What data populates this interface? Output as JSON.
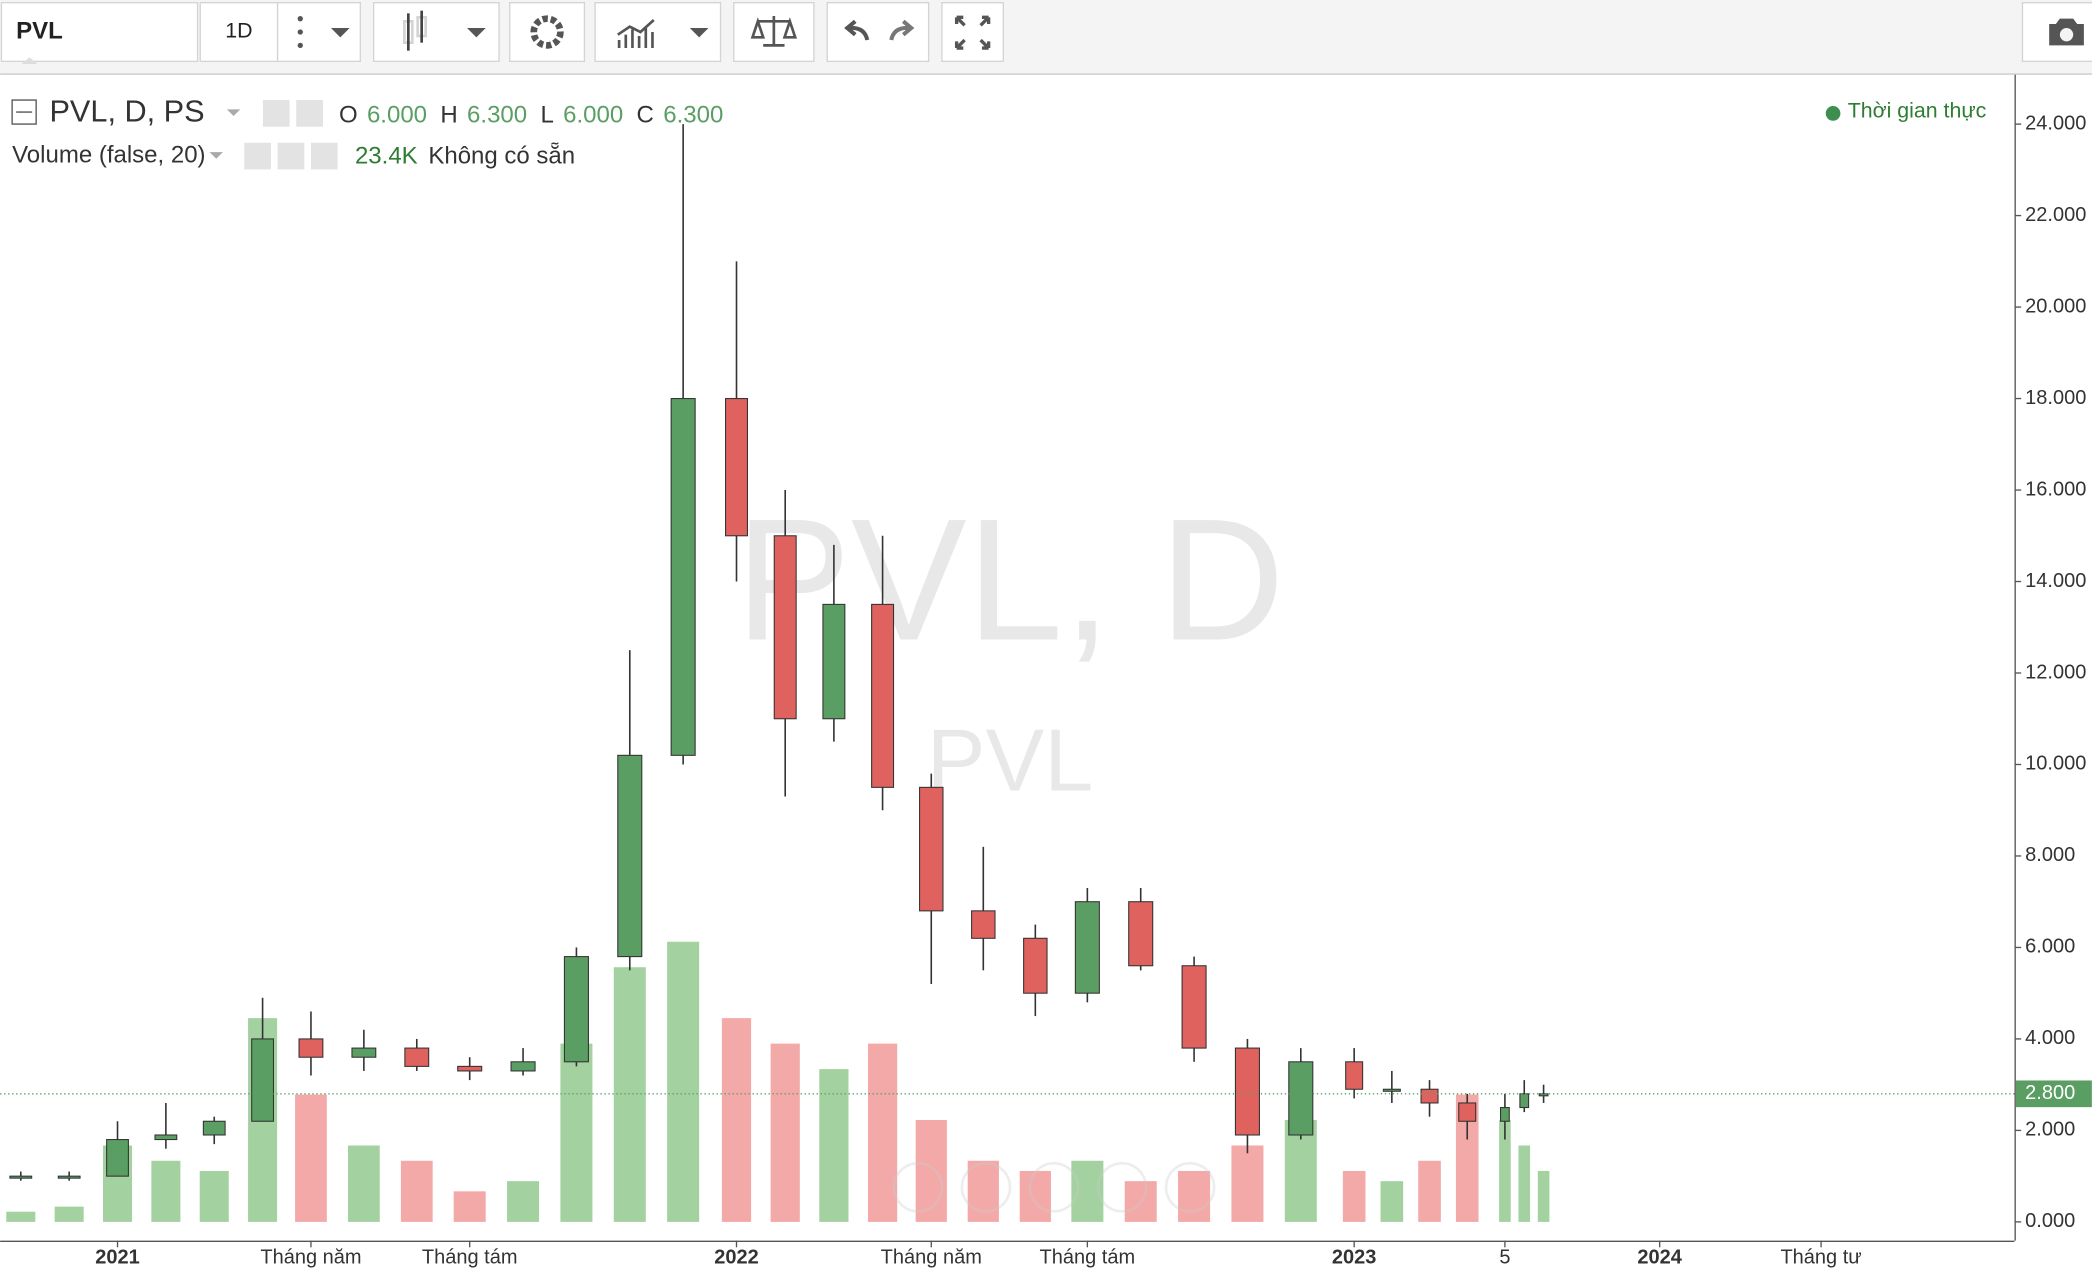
{
  "toolbar": {
    "symbol": "PVL",
    "interval": "1D"
  },
  "legend": {
    "title": "PVL, D, PS",
    "ohlc": [
      {
        "key": "O",
        "value": "6.000"
      },
      {
        "key": "H",
        "value": "6.300"
      },
      {
        "key": "L",
        "value": "6.000"
      },
      {
        "key": "C",
        "value": "6.300"
      }
    ],
    "volume_title": "Volume (false, 20)",
    "volume_value": "23.4K",
    "volume_status": "Không có sẵn"
  },
  "status": "Thời gian thực",
  "watermark": {
    "title": "PVL, D",
    "subtitle": "PVL"
  },
  "chart_data": {
    "type": "candlestick",
    "x": [
      "2020-11",
      "2020-12",
      "2021-01",
      "2021-02",
      "2021-03",
      "2021-04",
      "2021-05",
      "2021-06",
      "2021-07",
      "2021-08",
      "2021-09",
      "2021-10",
      "2021-11",
      "2021-12",
      "2022-01",
      "2022-02",
      "2022-03",
      "2022-04",
      "2022-05",
      "2022-06",
      "2022-07",
      "2022-08",
      "2022-09",
      "2022-10",
      "2022-11",
      "2022-12",
      "2023-01",
      "2023-02",
      "2023-03",
      "2023-04",
      "2023-05",
      "2023-06",
      "2023-07"
    ],
    "open": [
      1.0,
      1.0,
      1.0,
      1.8,
      1.9,
      2.2,
      4.0,
      3.6,
      3.8,
      3.4,
      3.3,
      3.5,
      5.8,
      10.2,
      18.0,
      15.0,
      11.0,
      13.5,
      9.5,
      6.8,
      6.2,
      5.0,
      7.0,
      5.6,
      3.8,
      1.9,
      3.5,
      2.9,
      2.9,
      2.6,
      2.2,
      2.5,
      2.8
    ],
    "high": [
      1.1,
      1.1,
      2.2,
      2.6,
      2.3,
      4.9,
      4.6,
      4.2,
      4.0,
      3.6,
      3.8,
      6.0,
      12.5,
      24.0,
      21.0,
      16.0,
      14.8,
      15.0,
      9.8,
      8.2,
      6.5,
      7.3,
      7.3,
      5.8,
      4.0,
      3.8,
      3.8,
      3.3,
      3.1,
      2.8,
      2.8,
      3.1,
      3.0
    ],
    "low": [
      0.9,
      0.9,
      1.0,
      1.6,
      1.7,
      2.2,
      3.2,
      3.3,
      3.3,
      3.1,
      3.2,
      3.4,
      5.5,
      10.0,
      14.0,
      9.3,
      10.5,
      9.0,
      5.2,
      5.5,
      4.5,
      4.8,
      5.5,
      3.5,
      1.5,
      1.8,
      2.7,
      2.6,
      2.3,
      1.8,
      1.8,
      2.4,
      2.6
    ],
    "close": [
      1.0,
      1.0,
      1.8,
      1.9,
      2.2,
      4.0,
      3.6,
      3.8,
      3.4,
      3.3,
      3.5,
      5.8,
      10.2,
      18.0,
      15.0,
      11.0,
      13.5,
      9.5,
      6.8,
      6.2,
      5.0,
      7.0,
      5.6,
      3.8,
      1.9,
      3.5,
      2.9,
      2.9,
      2.6,
      2.2,
      2.5,
      2.8,
      2.8
    ],
    "volume": [
      20,
      30,
      150,
      120,
      100,
      400,
      250,
      150,
      120,
      60,
      80,
      350,
      500,
      550,
      400,
      350,
      300,
      350,
      200,
      120,
      100,
      120,
      80,
      100,
      150,
      200,
      100,
      80,
      120,
      250,
      200,
      150,
      100
    ],
    "up_color": "#5a9e63",
    "down_color": "#e0625f",
    "volume_up_color": "#93c98f",
    "volume_down_color": "#f09a98",
    "ylim": [
      -0.41,
      25.08
    ],
    "yticks": [
      {
        "value": 0,
        "label": "0.000"
      },
      {
        "value": 2,
        "label": "2.000"
      },
      {
        "value": 4,
        "label": "4.000"
      },
      {
        "value": 6,
        "label": "6.000"
      },
      {
        "value": 8,
        "label": "8.000"
      },
      {
        "value": 10,
        "label": "10.000"
      },
      {
        "value": 12,
        "label": "12.000"
      },
      {
        "value": 14,
        "label": "14.000"
      },
      {
        "value": 16,
        "label": "16.000"
      },
      {
        "value": 18,
        "label": "18.000"
      },
      {
        "value": 20,
        "label": "20.000"
      },
      {
        "value": 22,
        "label": "22.000"
      },
      {
        "value": 24,
        "label": "24.000"
      }
    ],
    "xticks": [
      {
        "value": "2021-01",
        "label": "2021"
      },
      {
        "value": "2021-05",
        "label": "Tháng năm"
      },
      {
        "value": "2021-08",
        "label": "Tháng tám"
      },
      {
        "value": "2022-01",
        "label": "2022"
      },
      {
        "value": "2022-05",
        "label": "Tháng năm"
      },
      {
        "value": "2022-08",
        "label": "Tháng tám"
      },
      {
        "value": "2023-01",
        "label": "2023"
      },
      {
        "value": "2023-05",
        "label": "5"
      },
      {
        "value": "2024-01",
        "label": "2024"
      },
      {
        "value": "2024-04",
        "label": "Tháng tư"
      }
    ],
    "last_price": {
      "value": 2.8,
      "label": "2.800"
    }
  }
}
